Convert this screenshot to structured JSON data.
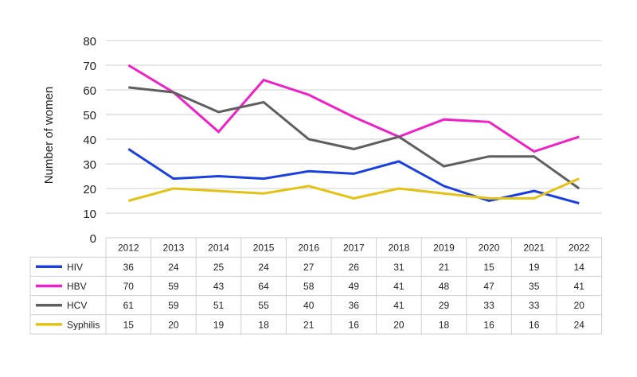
{
  "chart_data": {
    "type": "line",
    "title": "",
    "xlabel": "",
    "ylabel": "Number of women",
    "ylim": [
      0,
      80
    ],
    "yticks": [
      "0",
      "10",
      "20",
      "30",
      "40",
      "50",
      "60",
      "70",
      "80"
    ],
    "grid": true,
    "legend": "data table below chart",
    "categories": [
      "2012",
      "2013",
      "2014",
      "2015",
      "2016",
      "2017",
      "2018",
      "2019",
      "2020",
      "2021",
      "2022"
    ],
    "series": [
      {
        "name": "HIV",
        "color": "#1a3fe0",
        "values": [
          36,
          24,
          25,
          24,
          27,
          26,
          31,
          21,
          15,
          19,
          14
        ]
      },
      {
        "name": "HBV",
        "color": "#f020c8",
        "values": [
          70,
          59,
          43,
          64,
          58,
          49,
          41,
          48,
          47,
          35,
          41
        ]
      },
      {
        "name": "HCV",
        "color": "#5f5f5f",
        "values": [
          61,
          59,
          51,
          55,
          40,
          36,
          41,
          29,
          33,
          33,
          20
        ]
      },
      {
        "name": "Syphilis",
        "color": "#e3c214",
        "values": [
          15,
          20,
          19,
          18,
          21,
          16,
          20,
          18,
          16,
          16,
          24
        ]
      }
    ]
  }
}
